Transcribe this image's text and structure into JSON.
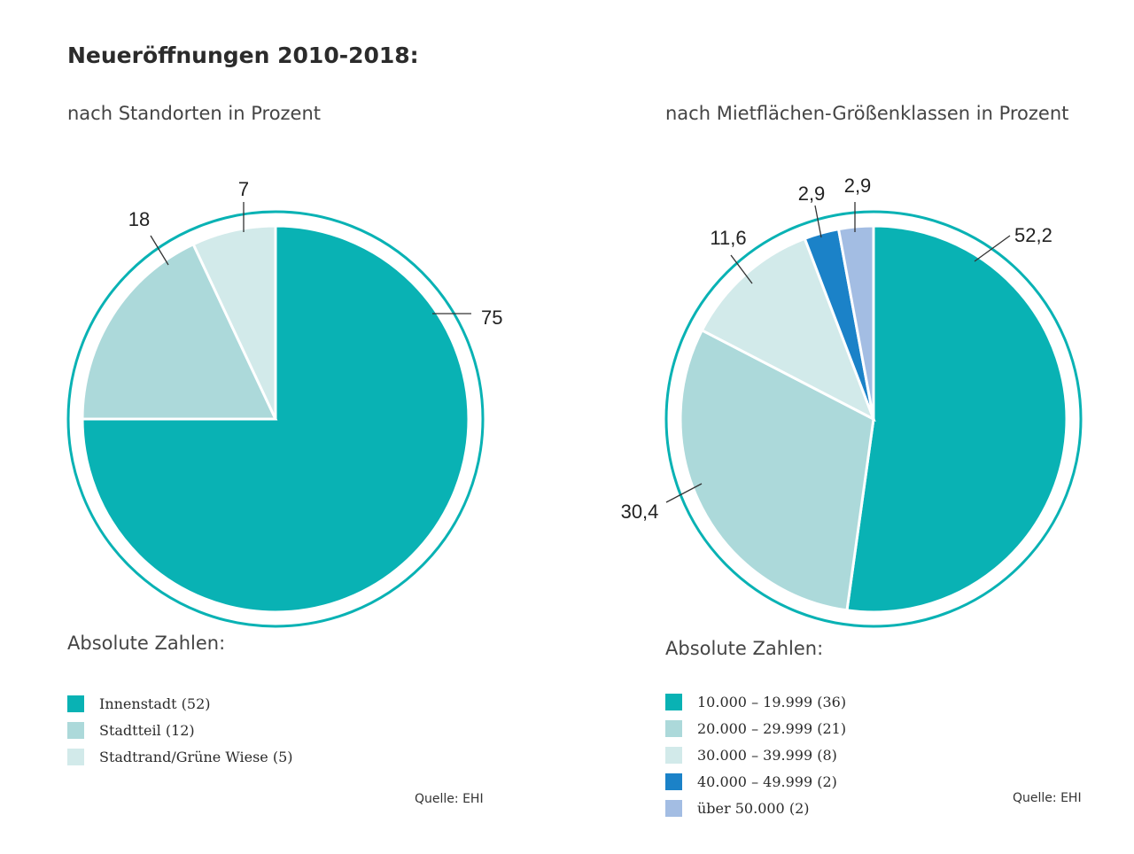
{
  "title": "Neueröffnungen 2010-2018:",
  "chart_data": [
    {
      "type": "pie",
      "subtitle": "nach Standorten in Prozent",
      "slices": [
        {
          "label": "75",
          "value": 75,
          "color": "#09b2b4"
        },
        {
          "label": "18",
          "value": 18,
          "color": "#acd9da"
        },
        {
          "label": "7",
          "value": 7,
          "color": "#d2eaea"
        }
      ],
      "ring_color": "#09b2b4",
      "legend_title": "Absolute Zahlen:",
      "legend": [
        {
          "label": "Innenstadt (52)",
          "color": "#09b2b4"
        },
        {
          "label": "Stadtteil (12)",
          "color": "#acd9da"
        },
        {
          "label": "Stadtrand/Grüne Wiese (5)",
          "color": "#d2eaea"
        }
      ],
      "source": "Quelle: EHI"
    },
    {
      "type": "pie",
      "subtitle": "nach Mietflächen-Größenklassen in Prozent",
      "slices": [
        {
          "label": "52,2",
          "value": 52.2,
          "color": "#09b2b4"
        },
        {
          "label": "30,4",
          "value": 30.4,
          "color": "#acd9da"
        },
        {
          "label": "11,6",
          "value": 11.6,
          "color": "#d2eaea"
        },
        {
          "label": "2,9",
          "value": 2.9,
          "color": "#1b82c8"
        },
        {
          "label": "2,9",
          "value": 2.9,
          "color": "#a3bde3"
        }
      ],
      "ring_color": "#09b2b4",
      "legend_title": "Absolute Zahlen:",
      "legend": [
        {
          "label": "10.000 – 19.999 (36)",
          "color": "#09b2b4"
        },
        {
          "label": "20.000 – 29.999 (21)",
          "color": "#acd9da"
        },
        {
          "label": "30.000 – 39.999 (8)",
          "color": "#d2eaea"
        },
        {
          "label": "40.000 – 49.999 (2)",
          "color": "#1b82c8"
        },
        {
          "label": "über 50.000 (2)",
          "color": "#a3bde3"
        }
      ],
      "source": "Quelle: EHI"
    }
  ]
}
